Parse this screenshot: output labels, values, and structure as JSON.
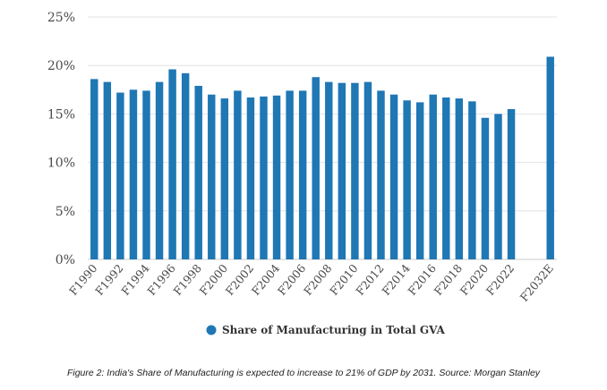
{
  "chart_data": {
    "type": "bar",
    "categories": [
      "F1990",
      "F1991",
      "F1992",
      "F1993",
      "F1994",
      "F1995",
      "F1996",
      "F1997",
      "F1998",
      "F1999",
      "F2000",
      "F2001",
      "F2002",
      "F2003",
      "F2004",
      "F2005",
      "F2006",
      "F2007",
      "F2008",
      "F2009",
      "F2010",
      "F2011",
      "F2012",
      "F2013",
      "F2014",
      "F2015",
      "F2016",
      "F2017",
      "F2018",
      "F2019",
      "F2020",
      "F2021",
      "F2022",
      "",
      "",
      "F2032E"
    ],
    "tick_labels": [
      "F1990",
      "F1992",
      "F1994",
      "F1996",
      "F1998",
      "F2000",
      "F2002",
      "F2004",
      "F2006",
      "F2008",
      "F2010",
      "F2012",
      "F2014",
      "F2016",
      "F2018",
      "F2020",
      "F2022",
      "F2032E"
    ],
    "series": [
      {
        "name": "Share of Manufacturing in Total GVA",
        "values": [
          18.6,
          18.3,
          17.2,
          17.5,
          17.4,
          18.3,
          19.6,
          19.2,
          17.9,
          17.0,
          16.6,
          17.4,
          16.7,
          16.8,
          16.9,
          17.4,
          17.4,
          18.8,
          18.3,
          18.2,
          18.2,
          18.3,
          17.4,
          17.0,
          16.4,
          16.2,
          17.0,
          16.7,
          16.6,
          16.3,
          14.6,
          15.0,
          15.5,
          null,
          null,
          20.9
        ]
      }
    ],
    "yticks": [
      "0%",
      "5%",
      "10%",
      "15%",
      "20%",
      "25%"
    ],
    "ylim": [
      0,
      25
    ],
    "grid": true,
    "legend": "bottom-center",
    "colors": {
      "bar": "#1f77b4",
      "grid": "#e3e3e3"
    }
  },
  "caption": "Figure 2: India's Share of Manufacturing is expected to increase to 21% of GDP by 2031. Source: Morgan Stanley"
}
